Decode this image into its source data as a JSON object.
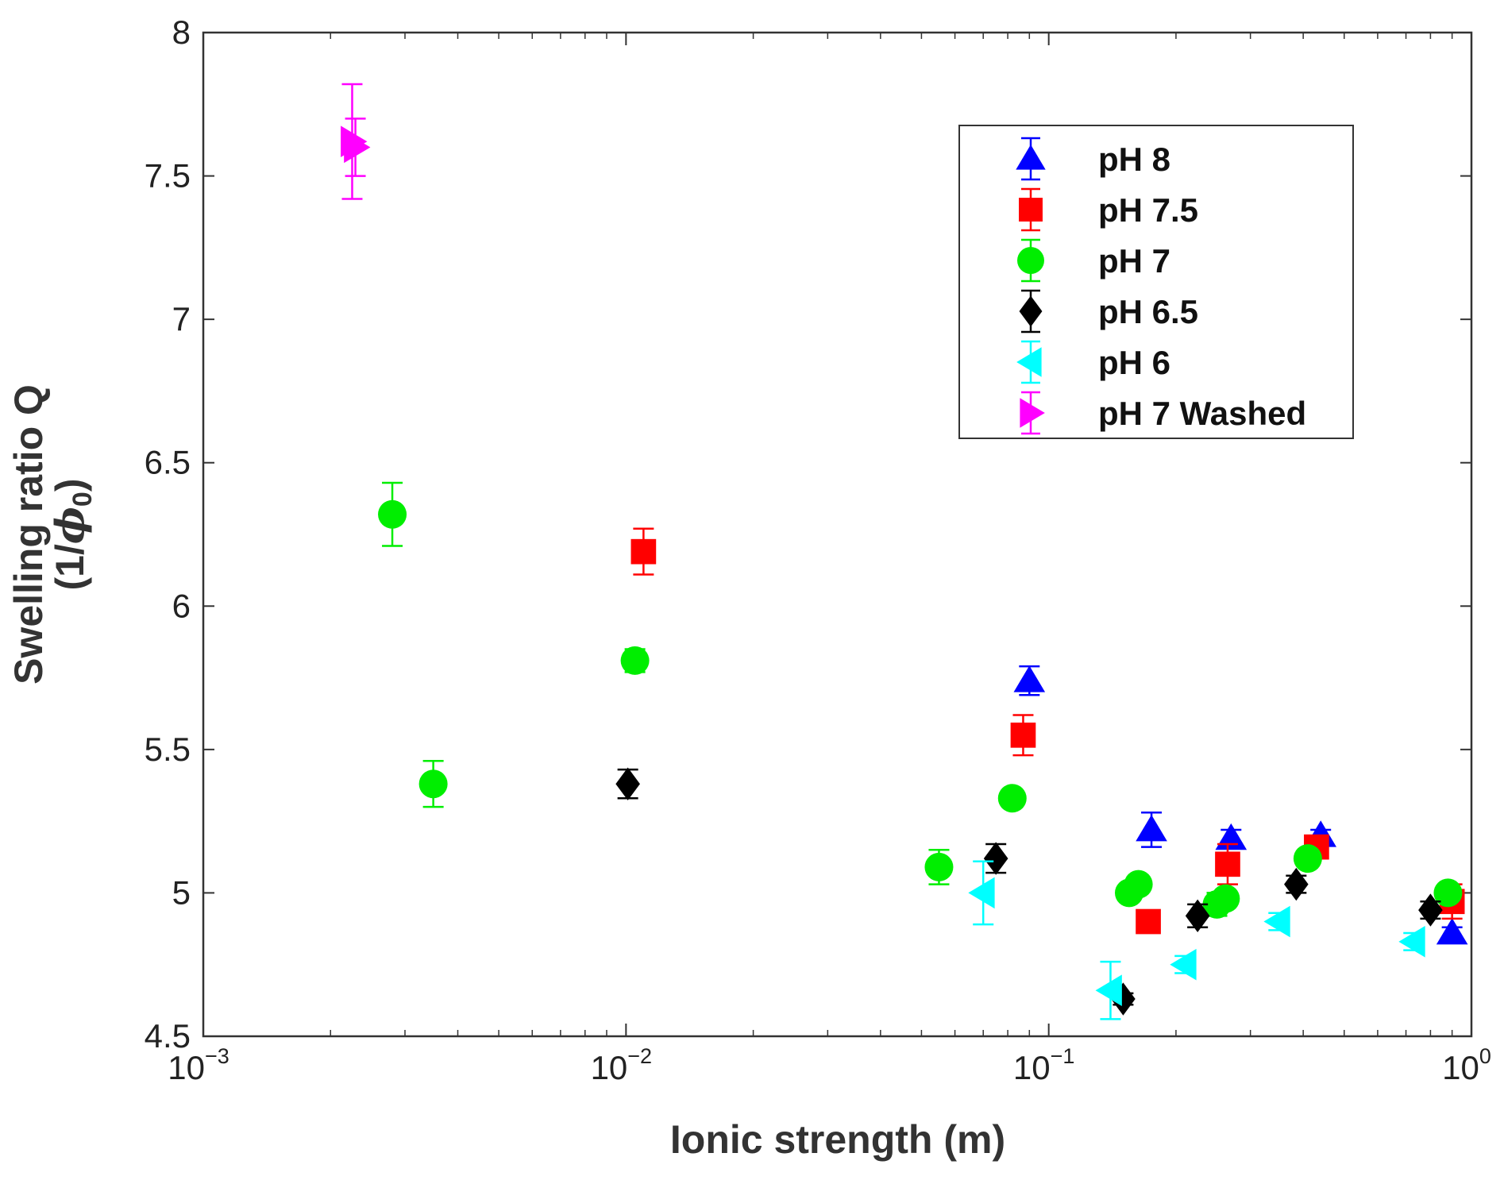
{
  "chart_data": {
    "type": "scatter",
    "xscale": "log",
    "xlabel": "Ionic strength (m)",
    "ylabel_line1": "Swelling ratio Q",
    "ylabel_line2_prefix": "(1/",
    "ylabel_phi": "ϕ",
    "ylabel_sub": "0",
    "ylabel_suffix": ")",
    "xlim": [
      0.001,
      1
    ],
    "ylim": [
      4.5,
      8
    ],
    "xticks": [
      {
        "value": 0.001,
        "base": "10",
        "exp": "−3"
      },
      {
        "value": 0.01,
        "base": "10",
        "exp": "−2"
      },
      {
        "value": 0.1,
        "base": "10",
        "exp": "−1"
      },
      {
        "value": 1,
        "base": "10",
        "exp": "0"
      }
    ],
    "yticks": [
      {
        "value": 4.5,
        "label": "4.5"
      },
      {
        "value": 5,
        "label": "5"
      },
      {
        "value": 5.5,
        "label": "5.5"
      },
      {
        "value": 6,
        "label": "6"
      },
      {
        "value": 6.5,
        "label": "6.5"
      },
      {
        "value": 7,
        "label": "7"
      },
      {
        "value": 7.5,
        "label": "7.5"
      },
      {
        "value": 8,
        "label": "8"
      }
    ],
    "legend_position": "top-right",
    "series": [
      {
        "name": "pH 8",
        "color": "#0000ff",
        "marker": "triangle-up",
        "points": [
          {
            "x": 0.09,
            "y": 5.74,
            "err": 0.05
          },
          {
            "x": 0.175,
            "y": 5.22,
            "err": 0.06
          },
          {
            "x": 0.27,
            "y": 5.19,
            "err": 0.03
          },
          {
            "x": 0.44,
            "y": 5.2,
            "err": 0.02
          },
          {
            "x": 0.9,
            "y": 4.86,
            "err": 0.02
          }
        ]
      },
      {
        "name": "pH 7.5",
        "color": "#ff0000",
        "marker": "square",
        "points": [
          {
            "x": 0.011,
            "y": 6.19,
            "err": 0.08
          },
          {
            "x": 0.087,
            "y": 5.55,
            "err": 0.07
          },
          {
            "x": 0.172,
            "y": 4.9,
            "err": 0.02
          },
          {
            "x": 0.265,
            "y": 5.1,
            "err": 0.07
          },
          {
            "x": 0.43,
            "y": 5.16,
            "err": 0.02
          },
          {
            "x": 0.9,
            "y": 4.97,
            "err": 0.06
          }
        ]
      },
      {
        "name": "pH 7",
        "color": "#00ee00",
        "marker": "circle",
        "points": [
          {
            "x": 0.0028,
            "y": 6.32,
            "err": 0.11
          },
          {
            "x": 0.0035,
            "y": 5.38,
            "err": 0.08
          },
          {
            "x": 0.0105,
            "y": 5.81,
            "err": 0.04
          },
          {
            "x": 0.055,
            "y": 5.09,
            "err": 0.06
          },
          {
            "x": 0.082,
            "y": 5.33,
            "err": 0.03
          },
          {
            "x": 0.155,
            "y": 5.0,
            "err": 0.03
          },
          {
            "x": 0.163,
            "y": 5.03,
            "err": 0.03
          },
          {
            "x": 0.25,
            "y": 4.96,
            "err": 0.04
          },
          {
            "x": 0.262,
            "y": 4.98,
            "err": 0.03
          },
          {
            "x": 0.41,
            "y": 5.12,
            "err": 0.02
          },
          {
            "x": 0.88,
            "y": 5.0,
            "err": 0.03
          }
        ]
      },
      {
        "name": "pH 6.5",
        "color": "#000000",
        "marker": "diamond",
        "points": [
          {
            "x": 0.0101,
            "y": 5.38,
            "err": 0.05
          },
          {
            "x": 0.075,
            "y": 5.12,
            "err": 0.05
          },
          {
            "x": 0.15,
            "y": 4.63,
            "err": 0.02
          },
          {
            "x": 0.225,
            "y": 4.92,
            "err": 0.04
          },
          {
            "x": 0.385,
            "y": 5.03,
            "err": 0.03
          },
          {
            "x": 0.8,
            "y": 4.94,
            "err": 0.03
          }
        ]
      },
      {
        "name": "pH 6",
        "color": "#00ffff",
        "marker": "triangle-left",
        "points": [
          {
            "x": 0.07,
            "y": 5.0,
            "err": 0.11
          },
          {
            "x": 0.14,
            "y": 4.66,
            "err": 0.1
          },
          {
            "x": 0.21,
            "y": 4.75,
            "err": 0.03
          },
          {
            "x": 0.35,
            "y": 4.9,
            "err": 0.03
          },
          {
            "x": 0.73,
            "y": 4.83,
            "err": 0.03
          }
        ]
      },
      {
        "name": "pH 7 Washed",
        "color": "#ff00ff",
        "marker": "triangle-right",
        "points": [
          {
            "x": 0.00225,
            "y": 7.62,
            "err": 0.2
          },
          {
            "x": 0.00229,
            "y": 7.6,
            "err": 0.1
          }
        ]
      }
    ]
  }
}
